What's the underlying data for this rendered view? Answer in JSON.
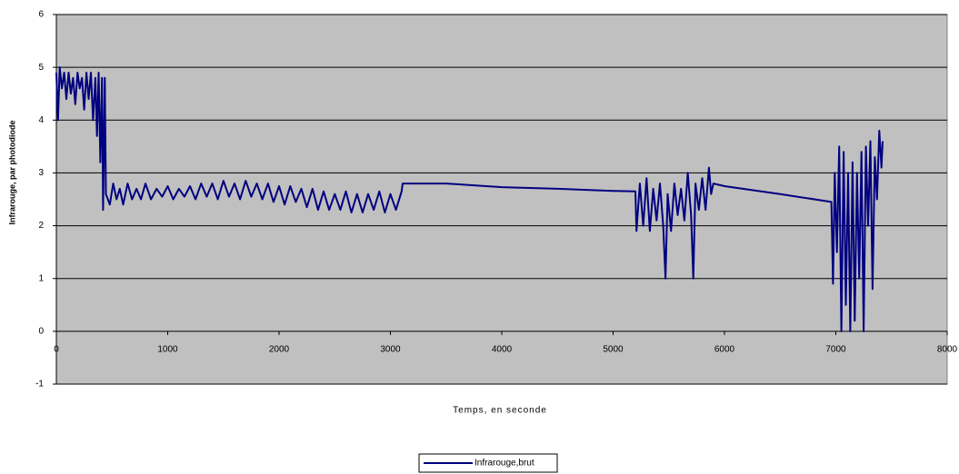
{
  "chart_data": {
    "type": "line",
    "y_label": "Infrarouge, par photodiode",
    "x_label": "Temps, en seconde",
    "xlim": [
      0,
      8000
    ],
    "xticks": [
      0,
      1000,
      2000,
      3000,
      4000,
      5000,
      6000,
      7000,
      8000
    ],
    "ylim": [
      -1,
      6
    ],
    "yticks": [
      -1,
      0,
      1,
      2,
      3,
      4,
      5,
      6
    ],
    "grid": true,
    "legend": "bottom",
    "series": [
      {
        "name": "Infrarouge,brut",
        "color": "#000080",
        "x": [
          0,
          15,
          30,
          50,
          70,
          90,
          110,
          130,
          150,
          170,
          190,
          210,
          230,
          250,
          270,
          290,
          310,
          330,
          350,
          365,
          380,
          395,
          410,
          420,
          435,
          445,
          480,
          510,
          540,
          570,
          600,
          640,
          680,
          720,
          760,
          800,
          850,
          900,
          950,
          1000,
          1050,
          1100,
          1150,
          1200,
          1250,
          1300,
          1350,
          1400,
          1450,
          1500,
          1550,
          1600,
          1650,
          1700,
          1750,
          1800,
          1850,
          1900,
          1950,
          2000,
          2050,
          2100,
          2150,
          2200,
          2250,
          2300,
          2350,
          2400,
          2450,
          2500,
          2550,
          2600,
          2650,
          2700,
          2750,
          2800,
          2850,
          2900,
          2950,
          3000,
          3050,
          3100,
          3110,
          3500,
          4000,
          4500,
          5000,
          5200,
          5210,
          5240,
          5270,
          5300,
          5330,
          5360,
          5390,
          5420,
          5450,
          5470,
          5490,
          5520,
          5550,
          5580,
          5610,
          5640,
          5670,
          5700,
          5720,
          5740,
          5770,
          5800,
          5830,
          5860,
          5880,
          5900,
          6000,
          6500,
          6960,
          6975,
          6990,
          7010,
          7030,
          7050,
          7070,
          7090,
          7110,
          7130,
          7150,
          7170,
          7190,
          7210,
          7230,
          7250,
          7270,
          7290,
          7310,
          7330,
          7350,
          7370,
          7390,
          7410,
          7420
        ],
        "values": [
          4.9,
          4.0,
          5.0,
          4.6,
          4.9,
          4.4,
          4.9,
          4.5,
          4.8,
          4.3,
          4.9,
          4.6,
          4.8,
          4.2,
          4.9,
          4.4,
          4.9,
          4.0,
          4.8,
          3.7,
          4.9,
          3.2,
          4.8,
          2.3,
          4.8,
          2.6,
          2.4,
          2.8,
          2.5,
          2.7,
          2.4,
          2.8,
          2.5,
          2.7,
          2.5,
          2.8,
          2.5,
          2.7,
          2.55,
          2.75,
          2.5,
          2.7,
          2.55,
          2.75,
          2.5,
          2.8,
          2.55,
          2.8,
          2.5,
          2.85,
          2.55,
          2.8,
          2.5,
          2.85,
          2.55,
          2.8,
          2.5,
          2.8,
          2.45,
          2.75,
          2.4,
          2.75,
          2.45,
          2.7,
          2.35,
          2.7,
          2.3,
          2.65,
          2.3,
          2.6,
          2.3,
          2.65,
          2.25,
          2.6,
          2.25,
          2.6,
          2.3,
          2.65,
          2.25,
          2.6,
          2.3,
          2.65,
          2.8,
          2.8,
          2.73,
          2.7,
          2.66,
          2.65,
          1.9,
          2.8,
          2.0,
          2.9,
          1.9,
          2.7,
          2.1,
          2.8,
          2.0,
          1.0,
          2.6,
          1.9,
          2.8,
          2.2,
          2.7,
          2.1,
          3.0,
          2.2,
          1.0,
          2.8,
          2.3,
          2.9,
          2.3,
          3.1,
          2.6,
          2.8,
          2.75,
          2.6,
          2.45,
          0.9,
          3.0,
          1.5,
          3.5,
          0.0,
          3.4,
          0.5,
          3.0,
          0.0,
          3.2,
          0.2,
          3.0,
          1.0,
          3.4,
          0.0,
          3.5,
          2.0,
          3.6,
          0.8,
          3.3,
          2.5,
          3.8,
          3.1,
          3.6
        ]
      }
    ]
  }
}
